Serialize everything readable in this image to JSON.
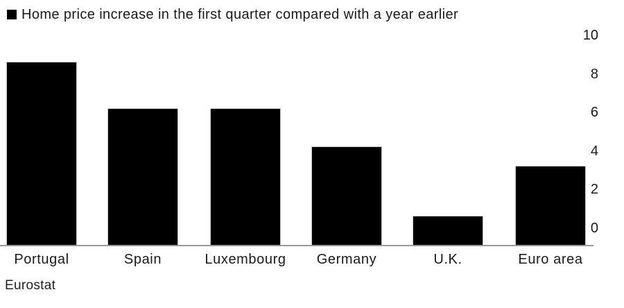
{
  "legend": {
    "label": "Home price increase in the first quarter compared with a year earlier",
    "marker_color": "#000000"
  },
  "source": "Eurostat",
  "chart_data": {
    "type": "bar",
    "title": "",
    "series_label": "Home price increase in the first quarter compared with a year earlier",
    "categories": [
      "Portugal",
      "Spain",
      "Luxembourg",
      "Germany",
      "U.K.",
      "Euro area"
    ],
    "values": [
      9.5,
      7.1,
      7.1,
      5.1,
      1.5,
      4.1
    ],
    "xlabel": "",
    "ylabel": "",
    "ylim": [
      0,
      10
    ],
    "y_ticks": [
      10,
      8,
      6,
      4,
      2,
      0
    ],
    "yaxis_side": "right",
    "grid": false,
    "legend_position": "top-left",
    "bar_color": "#000000",
    "axis_line_color": "#999999",
    "text_color": "#1a1a1a",
    "source": "Eurostat"
  }
}
